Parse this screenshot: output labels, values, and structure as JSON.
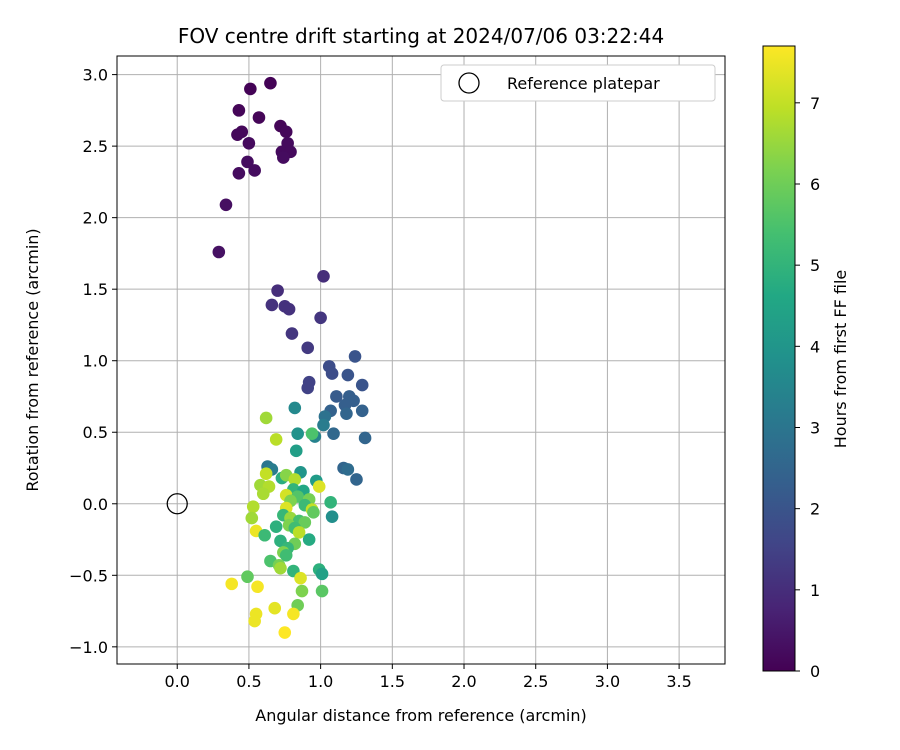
{
  "chart_data": {
    "type": "scatter",
    "title": "FOV centre drift starting at 2024/07/06 03:22:44",
    "xlabel": "Angular distance from reference (arcmin)",
    "ylabel": "Rotation from reference (arcmin)",
    "xlim": [
      -0.42,
      3.82
    ],
    "ylim": [
      -1.12,
      3.13
    ],
    "x_ticks": [
      "0.0",
      "0.5",
      "1.0",
      "1.5",
      "2.0",
      "2.5",
      "3.0",
      "3.5"
    ],
    "x_tick_values": [
      0,
      0.5,
      1.0,
      1.5,
      2.0,
      2.5,
      3.0,
      3.5
    ],
    "y_ticks": [
      "−1.0",
      "−0.5",
      "0.0",
      "0.5",
      "1.0",
      "1.5",
      "2.0",
      "2.5",
      "3.0"
    ],
    "y_tick_values": [
      -1.0,
      -0.5,
      0,
      0.5,
      1.0,
      1.5,
      2.0,
      2.5,
      3.0
    ],
    "grid": true,
    "legend": {
      "position": "upper-right",
      "entries": [
        {
          "label": "Reference platepar",
          "marker": "open-circle"
        }
      ]
    },
    "reference_point": {
      "x": 0.0,
      "y": 0.0
    },
    "colorbar": {
      "label": "Hours from first FF file",
      "range": [
        0,
        7.7
      ],
      "ticks": [
        "0",
        "1",
        "2",
        "3",
        "4",
        "5",
        "6",
        "7"
      ],
      "tick_values": [
        0,
        1,
        2,
        3,
        4,
        5,
        6,
        7
      ],
      "colormap": "viridis"
    },
    "series": [
      {
        "points": [
          {
            "x": 0.65,
            "y": 2.94,
            "c": 0.05
          },
          {
            "x": 0.51,
            "y": 2.9,
            "c": 0.05
          },
          {
            "x": 0.43,
            "y": 2.75,
            "c": 0.1
          },
          {
            "x": 0.57,
            "y": 2.7,
            "c": 0.1
          },
          {
            "x": 0.72,
            "y": 2.64,
            "c": 0.1
          },
          {
            "x": 0.45,
            "y": 2.6,
            "c": 0.15
          },
          {
            "x": 0.76,
            "y": 2.6,
            "c": 0.15
          },
          {
            "x": 0.42,
            "y": 2.58,
            "c": 0.15
          },
          {
            "x": 0.5,
            "y": 2.52,
            "c": 0.2
          },
          {
            "x": 0.77,
            "y": 2.52,
            "c": 0.2
          },
          {
            "x": 0.73,
            "y": 2.46,
            "c": 0.2
          },
          {
            "x": 0.79,
            "y": 2.46,
            "c": 0.2
          },
          {
            "x": 0.74,
            "y": 2.42,
            "c": 0.25
          },
          {
            "x": 0.49,
            "y": 2.39,
            "c": 0.25
          },
          {
            "x": 0.54,
            "y": 2.33,
            "c": 0.25
          },
          {
            "x": 0.43,
            "y": 2.31,
            "c": 0.25
          },
          {
            "x": 0.34,
            "y": 2.09,
            "c": 0.3
          },
          {
            "x": 0.29,
            "y": 1.76,
            "c": 0.35
          },
          {
            "x": 1.02,
            "y": 1.59,
            "c": 1.0
          },
          {
            "x": 0.7,
            "y": 1.49,
            "c": 1.0
          },
          {
            "x": 0.66,
            "y": 1.39,
            "c": 1.1
          },
          {
            "x": 0.75,
            "y": 1.38,
            "c": 1.1
          },
          {
            "x": 0.78,
            "y": 1.36,
            "c": 1.1
          },
          {
            "x": 1.0,
            "y": 1.3,
            "c": 1.2
          },
          {
            "x": 0.8,
            "y": 1.19,
            "c": 1.2
          },
          {
            "x": 0.91,
            "y": 1.09,
            "c": 1.3
          },
          {
            "x": 1.24,
            "y": 1.03,
            "c": 2.0
          },
          {
            "x": 1.06,
            "y": 0.96,
            "c": 1.8
          },
          {
            "x": 1.08,
            "y": 0.91,
            "c": 1.8
          },
          {
            "x": 1.19,
            "y": 0.9,
            "c": 2.0
          },
          {
            "x": 0.92,
            "y": 0.85,
            "c": 1.5
          },
          {
            "x": 1.29,
            "y": 0.83,
            "c": 2.0
          },
          {
            "x": 0.91,
            "y": 0.81,
            "c": 1.5
          },
          {
            "x": 1.11,
            "y": 0.75,
            "c": 2.2
          },
          {
            "x": 1.2,
            "y": 0.75,
            "c": 2.3
          },
          {
            "x": 1.23,
            "y": 0.72,
            "c": 2.3
          },
          {
            "x": 1.17,
            "y": 0.69,
            "c": 2.3
          },
          {
            "x": 1.07,
            "y": 0.65,
            "c": 2.4
          },
          {
            "x": 1.29,
            "y": 0.65,
            "c": 2.4
          },
          {
            "x": 0.82,
            "y": 0.67,
            "c": 3.6
          },
          {
            "x": 1.18,
            "y": 0.63,
            "c": 2.5
          },
          {
            "x": 1.03,
            "y": 0.61,
            "c": 2.9
          },
          {
            "x": 1.02,
            "y": 0.55,
            "c": 3.2
          },
          {
            "x": 1.09,
            "y": 0.49,
            "c": 2.6
          },
          {
            "x": 1.31,
            "y": 0.46,
            "c": 2.5
          },
          {
            "x": 0.96,
            "y": 0.47,
            "c": 3.4
          },
          {
            "x": 0.84,
            "y": 0.49,
            "c": 3.9
          },
          {
            "x": 0.94,
            "y": 0.49,
            "c": 5.5
          },
          {
            "x": 0.62,
            "y": 0.6,
            "c": 6.6
          },
          {
            "x": 0.69,
            "y": 0.45,
            "c": 6.9
          },
          {
            "x": 0.83,
            "y": 0.37,
            "c": 4.3
          },
          {
            "x": 1.16,
            "y": 0.25,
            "c": 2.5
          },
          {
            "x": 1.19,
            "y": 0.24,
            "c": 2.7
          },
          {
            "x": 0.63,
            "y": 0.26,
            "c": 3.0
          },
          {
            "x": 0.66,
            "y": 0.24,
            "c": 3.2
          },
          {
            "x": 1.25,
            "y": 0.17,
            "c": 2.5
          },
          {
            "x": 0.86,
            "y": 0.22,
            "c": 4.0
          },
          {
            "x": 0.73,
            "y": 0.18,
            "c": 4.8
          },
          {
            "x": 0.76,
            "y": 0.2,
            "c": 6.3
          },
          {
            "x": 0.62,
            "y": 0.21,
            "c": 7.0
          },
          {
            "x": 0.82,
            "y": 0.17,
            "c": 6.8
          },
          {
            "x": 0.97,
            "y": 0.16,
            "c": 4.2
          },
          {
            "x": 0.99,
            "y": 0.12,
            "c": 7.3
          },
          {
            "x": 0.58,
            "y": 0.13,
            "c": 6.6
          },
          {
            "x": 0.64,
            "y": 0.12,
            "c": 6.8
          },
          {
            "x": 0.81,
            "y": 0.1,
            "c": 5.0
          },
          {
            "x": 0.88,
            "y": 0.09,
            "c": 4.6
          },
          {
            "x": 0.6,
            "y": 0.07,
            "c": 6.7
          },
          {
            "x": 0.76,
            "y": 0.06,
            "c": 7.2
          },
          {
            "x": 0.84,
            "y": 0.05,
            "c": 5.6
          },
          {
            "x": 0.92,
            "y": 0.03,
            "c": 6.1
          },
          {
            "x": 1.07,
            "y": 0.01,
            "c": 5.0
          },
          {
            "x": 0.79,
            "y": 0.02,
            "c": 6.2
          },
          {
            "x": 0.53,
            "y": -0.02,
            "c": 6.8
          },
          {
            "x": 0.76,
            "y": -0.03,
            "c": 7.3
          },
          {
            "x": 0.89,
            "y": -0.01,
            "c": 5.2
          },
          {
            "x": 0.94,
            "y": -0.04,
            "c": 7.0
          },
          {
            "x": 0.95,
            "y": -0.06,
            "c": 5.8
          },
          {
            "x": 0.74,
            "y": -0.08,
            "c": 5.1
          },
          {
            "x": 0.79,
            "y": -0.1,
            "c": 6.5
          },
          {
            "x": 1.08,
            "y": -0.09,
            "c": 3.8
          },
          {
            "x": 0.52,
            "y": -0.1,
            "c": 6.6
          },
          {
            "x": 0.85,
            "y": -0.12,
            "c": 5.4
          },
          {
            "x": 0.89,
            "y": -0.13,
            "c": 5.9
          },
          {
            "x": 0.78,
            "y": -0.15,
            "c": 6.2
          },
          {
            "x": 0.69,
            "y": -0.16,
            "c": 4.9
          },
          {
            "x": 0.82,
            "y": -0.17,
            "c": 5.3
          },
          {
            "x": 0.55,
            "y": -0.19,
            "c": 7.5
          },
          {
            "x": 0.85,
            "y": -0.2,
            "c": 6.9
          },
          {
            "x": 0.61,
            "y": -0.22,
            "c": 5.2
          },
          {
            "x": 0.92,
            "y": -0.25,
            "c": 4.7
          },
          {
            "x": 0.72,
            "y": -0.26,
            "c": 4.9
          },
          {
            "x": 0.82,
            "y": -0.28,
            "c": 6.0
          },
          {
            "x": 0.77,
            "y": -0.31,
            "c": 5.1
          },
          {
            "x": 0.74,
            "y": -0.34,
            "c": 6.2
          },
          {
            "x": 0.76,
            "y": -0.36,
            "c": 5.3
          },
          {
            "x": 0.65,
            "y": -0.4,
            "c": 5.5
          },
          {
            "x": 0.71,
            "y": -0.43,
            "c": 6.1
          },
          {
            "x": 0.72,
            "y": -0.45,
            "c": 6.6
          },
          {
            "x": 0.99,
            "y": -0.46,
            "c": 4.9
          },
          {
            "x": 0.81,
            "y": -0.47,
            "c": 5.0
          },
          {
            "x": 1.01,
            "y": -0.49,
            "c": 4.4
          },
          {
            "x": 0.49,
            "y": -0.51,
            "c": 5.8
          },
          {
            "x": 0.86,
            "y": -0.52,
            "c": 7.3
          },
          {
            "x": 0.38,
            "y": -0.56,
            "c": 7.6
          },
          {
            "x": 0.56,
            "y": -0.58,
            "c": 7.6
          },
          {
            "x": 0.87,
            "y": -0.61,
            "c": 6.2
          },
          {
            "x": 1.01,
            "y": -0.61,
            "c": 5.7
          },
          {
            "x": 0.84,
            "y": -0.71,
            "c": 6.0
          },
          {
            "x": 0.68,
            "y": -0.73,
            "c": 7.4
          },
          {
            "x": 0.55,
            "y": -0.77,
            "c": 7.5
          },
          {
            "x": 0.81,
            "y": -0.77,
            "c": 7.6
          },
          {
            "x": 0.54,
            "y": -0.82,
            "c": 7.5
          },
          {
            "x": 0.75,
            "y": -0.9,
            "c": 7.7
          }
        ]
      }
    ]
  }
}
